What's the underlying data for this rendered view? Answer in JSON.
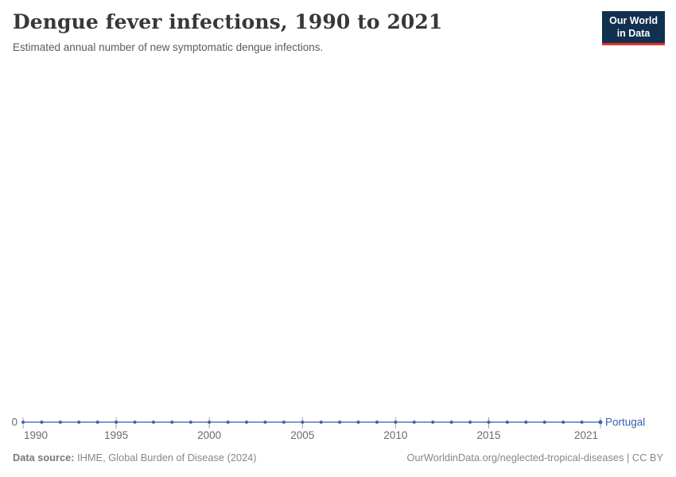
{
  "header": {
    "title": "Dengue fever infections, 1990 to 2021",
    "subtitle": "Estimated annual number of new symptomatic dengue infections.",
    "logo": {
      "line1": "Our World",
      "line2": "in Data",
      "bg_color": "#12304f",
      "accent_color": "#e0332c"
    }
  },
  "chart_data": {
    "type": "line",
    "title": "Dengue fever infections, 1990 to 2021",
    "x": [
      1990,
      1991,
      1992,
      1993,
      1994,
      1995,
      1996,
      1997,
      1998,
      1999,
      2000,
      2001,
      2002,
      2003,
      2004,
      2005,
      2006,
      2007,
      2008,
      2009,
      2010,
      2011,
      2012,
      2013,
      2014,
      2015,
      2016,
      2017,
      2018,
      2019,
      2020,
      2021
    ],
    "series": [
      {
        "name": "Portugal",
        "values": [
          0,
          0,
          0,
          0,
          0,
          0,
          0,
          0,
          0,
          0,
          0,
          0,
          0,
          0,
          0,
          0,
          0,
          0,
          0,
          0,
          0,
          0,
          0,
          0,
          0,
          0,
          0,
          0,
          0,
          0,
          0,
          0
        ],
        "line_color": "#7e9cd0",
        "marker_color": "#3f64ad",
        "label_color": "#3360a9"
      }
    ],
    "x_tick_labels": [
      "1990",
      "1995",
      "2000",
      "2005",
      "2010",
      "2015",
      "2021"
    ],
    "x_tick_values": [
      1990,
      1995,
      2000,
      2005,
      2010,
      2015,
      2021
    ],
    "y_tick_label": "0",
    "xlim": [
      1990,
      2021
    ],
    "ylim": [
      0,
      0
    ],
    "grid": false,
    "legend_position": "end-of-line",
    "axis_label_color": "#6b6b6b",
    "tick_color": "#a3a3a3"
  },
  "footer": {
    "source_label": "Data source:",
    "source_value": " IHME, Global Burden of Disease (2024)",
    "link": "OurWorldinData.org/neglected-tropical-diseases | CC BY"
  }
}
